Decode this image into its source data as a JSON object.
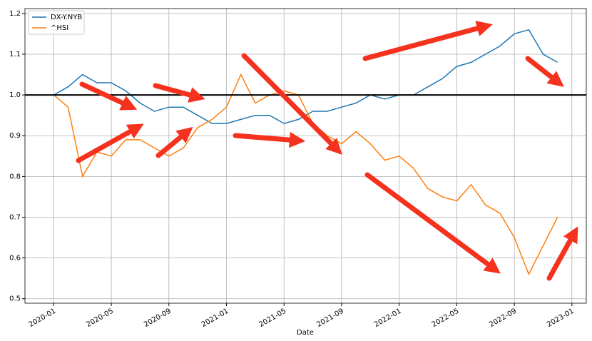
{
  "chart_data": {
    "type": "line",
    "x_label": "Date",
    "x": [
      "2020-01",
      "2020-02",
      "2020-03",
      "2020-04",
      "2020-05",
      "2020-06",
      "2020-07",
      "2020-08",
      "2020-09",
      "2020-10",
      "2020-11",
      "2020-12",
      "2021-01",
      "2021-02",
      "2021-03",
      "2021-04",
      "2021-05",
      "2021-06",
      "2021-07",
      "2021-08",
      "2021-09",
      "2021-10",
      "2021-11",
      "2021-12",
      "2022-01",
      "2022-02",
      "2022-03",
      "2022-04",
      "2022-05",
      "2022-06",
      "2022-07",
      "2022-08",
      "2022-09",
      "2022-10",
      "2022-11",
      "2022-12"
    ],
    "series": [
      {
        "name": "DX-Y.NYB",
        "color": "#1f77b4",
        "values": [
          1.0,
          1.02,
          1.05,
          1.03,
          1.03,
          1.01,
          0.98,
          0.96,
          0.97,
          0.97,
          0.95,
          0.93,
          0.93,
          0.94,
          0.95,
          0.95,
          0.93,
          0.94,
          0.96,
          0.96,
          0.97,
          0.98,
          1.0,
          0.99,
          1.0,
          1.0,
          1.02,
          1.04,
          1.07,
          1.08,
          1.1,
          1.12,
          1.15,
          1.16,
          1.1,
          1.08
        ]
      },
      {
        "name": "^HSI",
        "color": "#ff7f0e",
        "values": [
          1.0,
          0.97,
          0.8,
          0.86,
          0.85,
          0.89,
          0.89,
          0.87,
          0.85,
          0.87,
          0.92,
          0.94,
          0.97,
          1.05,
          0.98,
          1.0,
          1.01,
          1.0,
          0.93,
          0.9,
          0.88,
          0.91,
          0.88,
          0.84,
          0.85,
          0.82,
          0.77,
          0.75,
          0.74,
          0.78,
          0.73,
          0.71,
          0.65,
          0.56,
          0.63,
          0.7
        ]
      }
    ],
    "xlim": [
      "2019-11",
      "2023-02"
    ],
    "xticks": [
      "2020-01",
      "2020-05",
      "2020-09",
      "2021-01",
      "2021-05",
      "2021-09",
      "2022-01",
      "2022-05",
      "2022-09",
      "2023-01"
    ],
    "ylim": [
      0.489,
      1.212
    ],
    "yticks": [
      0.5,
      0.6,
      0.7,
      0.8,
      0.9,
      {
        "value": 1,
        "label": "1.0"
      },
      1.1,
      1.2
    ],
    "reference_line": 1,
    "grid": true,
    "legend": "upper left"
  }
}
